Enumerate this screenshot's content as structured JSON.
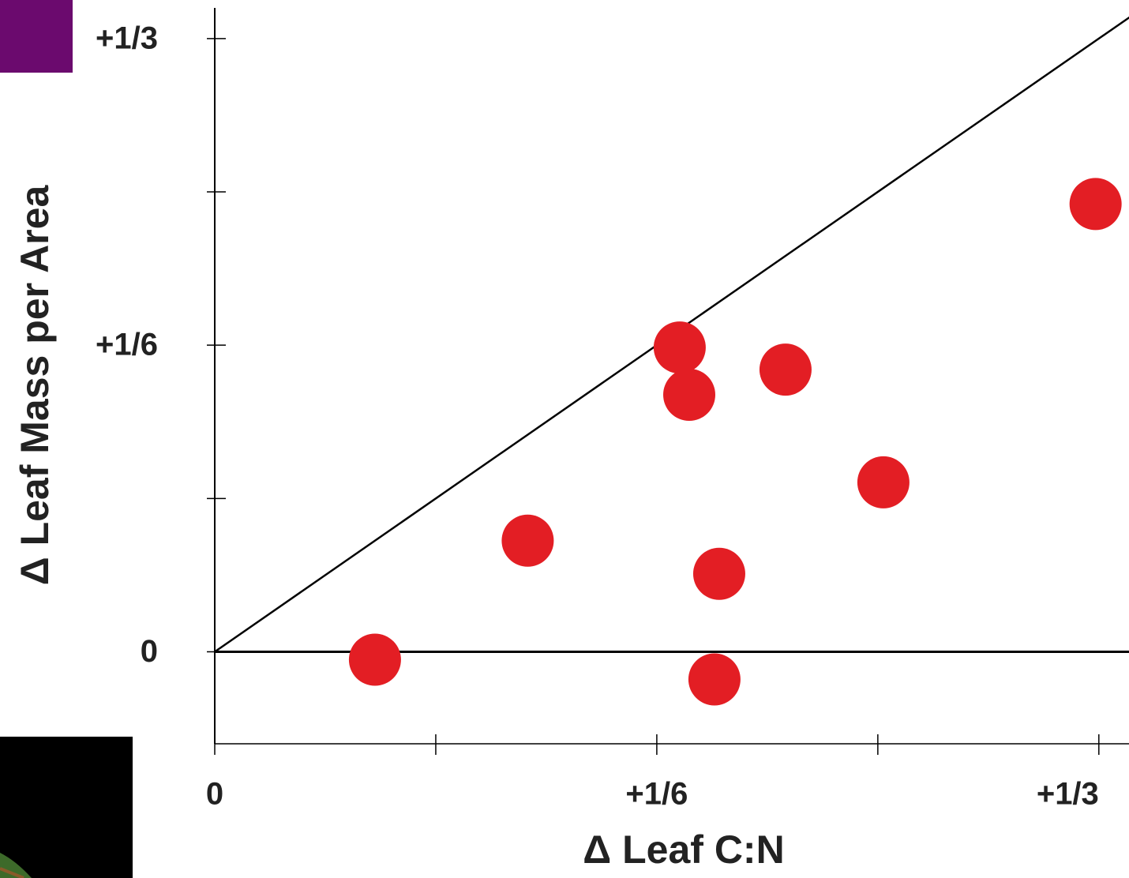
{
  "chart_data": {
    "type": "scatter",
    "x_label": "Δ Leaf C:N",
    "y_label": "Δ Leaf Mass per Area",
    "xlim": [
      0,
      0.345
    ],
    "ylim": [
      -0.05,
      0.35
    ],
    "xticks": [
      0,
      {
        "value": 0.166667,
        "label": "+1/6"
      },
      {
        "value": 0.333333,
        "label": "+1/3"
      }
    ],
    "yticks": [
      0,
      {
        "value": 0.166667,
        "label": "+1/6"
      },
      {
        "value": 0.333333,
        "label": "+1/3"
      }
    ],
    "xminorticks": [
      0.083333,
      0.25
    ],
    "yminorticks": [
      0.083333,
      0.25
    ],
    "zero_line": true,
    "one_to_one_line": true,
    "color": "#e31e24",
    "x": [
      0.0604,
      0.118,
      0.1753,
      0.1789,
      0.1902,
      0.1884,
      0.2152,
      0.2521,
      0.3321
    ],
    "y": [
      -0.0043,
      0.0604,
      0.1654,
      0.1397,
      0.0424,
      -0.015,
      0.1534,
      0.0921,
      0.2434
    ]
  }
}
